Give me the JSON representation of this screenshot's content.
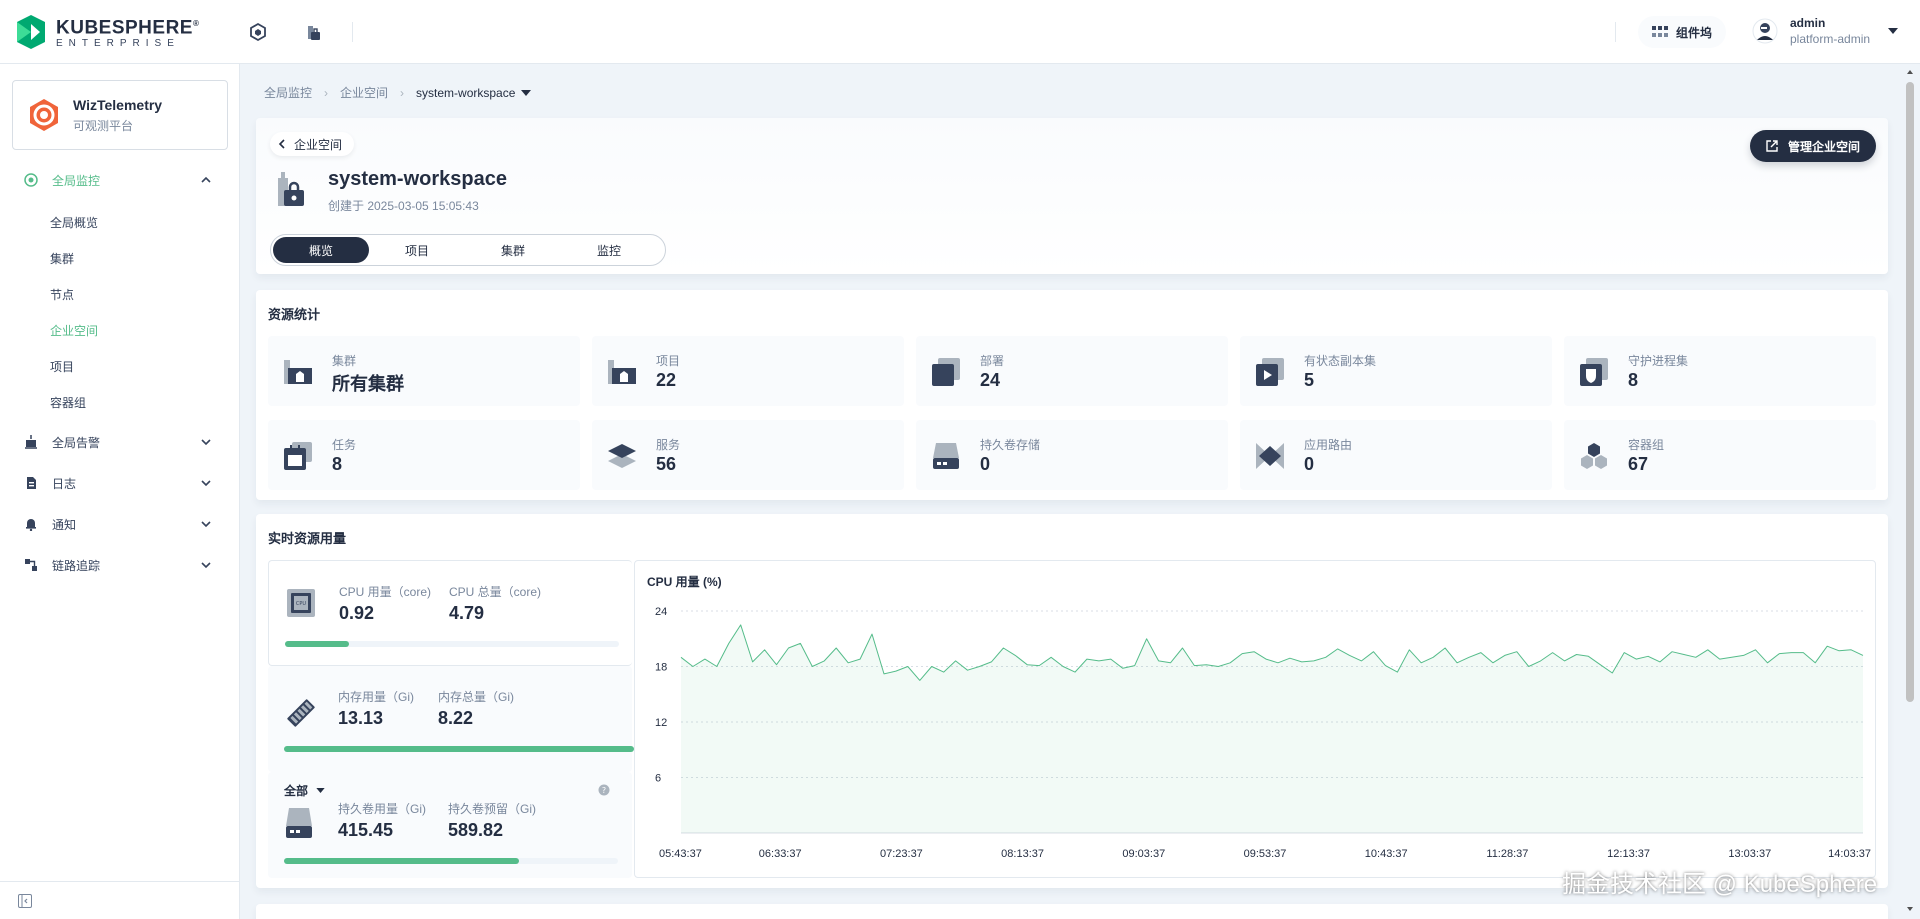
{
  "header": {
    "logo_main": "KUBESPHERE",
    "logo_reg": "®",
    "logo_sub": "ENTERPRISE",
    "components_label": "组件坞",
    "user_name": "admin",
    "user_role": "platform-admin"
  },
  "sidebar": {
    "app_name": "WizTelemetry",
    "app_desc": "可观测平台",
    "groups": [
      {
        "label": "全局监控",
        "expanded": true,
        "active": true
      },
      {
        "label": "全局告警"
      },
      {
        "label": "日志"
      },
      {
        "label": "通知"
      },
      {
        "label": "链路追踪"
      }
    ],
    "monitor_items": [
      "全局概览",
      "集群",
      "节点",
      "企业空间",
      "项目",
      "容器组"
    ],
    "active_item": "企业空间"
  },
  "breadcrumb": {
    "items": [
      "全局监控",
      "企业空间"
    ],
    "current": "system-workspace"
  },
  "workspace": {
    "back_label": "企业空间",
    "name": "system-workspace",
    "created": "创建于 2025-03-05 15:05:43",
    "manage_label": "管理企业空间",
    "tabs": [
      "概览",
      "项目",
      "集群",
      "监控"
    ],
    "active_tab": "概览"
  },
  "resources": {
    "title": "资源统计",
    "items": [
      {
        "label": "集群",
        "value": "所有集群",
        "icon": "cluster-icon"
      },
      {
        "label": "项目",
        "value": "22",
        "icon": "project-icon"
      },
      {
        "label": "部署",
        "value": "24",
        "icon": "deployment-icon"
      },
      {
        "label": "有状态副本集",
        "value": "5",
        "icon": "statefulset-icon"
      },
      {
        "label": "守护进程集",
        "value": "8",
        "icon": "daemonset-icon"
      },
      {
        "label": "任务",
        "value": "8",
        "icon": "job-icon"
      },
      {
        "label": "服务",
        "value": "56",
        "icon": "service-icon"
      },
      {
        "label": "持久卷存储",
        "value": "0",
        "icon": "pvc-icon"
      },
      {
        "label": "应用路由",
        "value": "0",
        "icon": "ingress-icon"
      },
      {
        "label": "容器组",
        "value": "67",
        "icon": "pod-icon"
      }
    ]
  },
  "usage": {
    "title": "实时资源用量",
    "cpu": {
      "used_label": "CPU 用量（core)",
      "used": "0.92",
      "total_label": "CPU 总量（core)",
      "total": "4.79",
      "ratio": 0.192
    },
    "memory": {
      "used_label": "内存用量（Gi)",
      "used": "13.13",
      "total_label": "内存总量（Gi)",
      "total": "8.22",
      "ratio": 1.0
    },
    "volume": {
      "filter": "全部",
      "used_label": "持久卷用量（Gi)",
      "used": "415.45",
      "total_label": "持久卷预留（Gi)",
      "total": "589.82",
      "ratio": 0.704
    }
  },
  "chart_data": {
    "type": "area",
    "title": "CPU 用量 (%)",
    "ylim": [
      0,
      24
    ],
    "yticks": [
      6,
      12,
      18,
      24
    ],
    "xticks": [
      "05:43:37",
      "06:33:37",
      "07:23:37",
      "08:13:37",
      "09:03:37",
      "09:53:37",
      "10:43:37",
      "11:28:37",
      "12:13:37",
      "13:03:37",
      "14:03:37"
    ],
    "grid": true,
    "color": "#55bc8a",
    "series": [
      {
        "values": [
          19,
          18,
          18.8,
          18,
          20.5,
          22.5,
          18.5,
          19.8,
          18.2,
          20,
          20.5,
          18,
          18.6,
          20,
          18.4,
          18.8,
          21.5,
          17.2,
          17.5,
          18,
          16.5,
          18,
          17.4,
          18.6,
          17.6,
          18,
          18.5,
          20,
          19.2,
          18.2,
          18.1,
          19,
          18,
          17.4,
          18.8,
          18.6,
          18.8,
          17.8,
          18.1,
          21,
          18.6,
          18.4,
          20,
          18.1,
          18.2,
          18,
          18.4,
          19.4,
          19.6,
          18.8,
          18.4,
          18.9,
          18.5,
          18.6,
          19,
          19.9,
          19.2,
          18.6,
          19.6,
          18.1,
          17.4,
          19.8,
          18.4,
          19,
          20,
          18.4,
          19,
          19.5,
          18.4,
          19.2,
          19.6,
          18,
          18.6,
          19.5,
          18.6,
          19.3,
          19.1,
          18.2,
          17.3,
          19.5,
          18.8,
          19.1,
          18.5,
          19.6,
          19.3,
          19,
          19.8,
          18.8,
          19,
          19.2,
          19.8,
          18.4,
          19.4,
          19.5,
          19.5,
          18.4,
          20.2,
          19.7,
          19.8,
          19.2
        ]
      }
    ]
  },
  "watermark": "掘金技术社区 @ KubeSphere",
  "colors": {
    "accent": "#55bc8a",
    "dark": "#242e42",
    "muted": "#79879c",
    "bg": "#eff4f9"
  }
}
